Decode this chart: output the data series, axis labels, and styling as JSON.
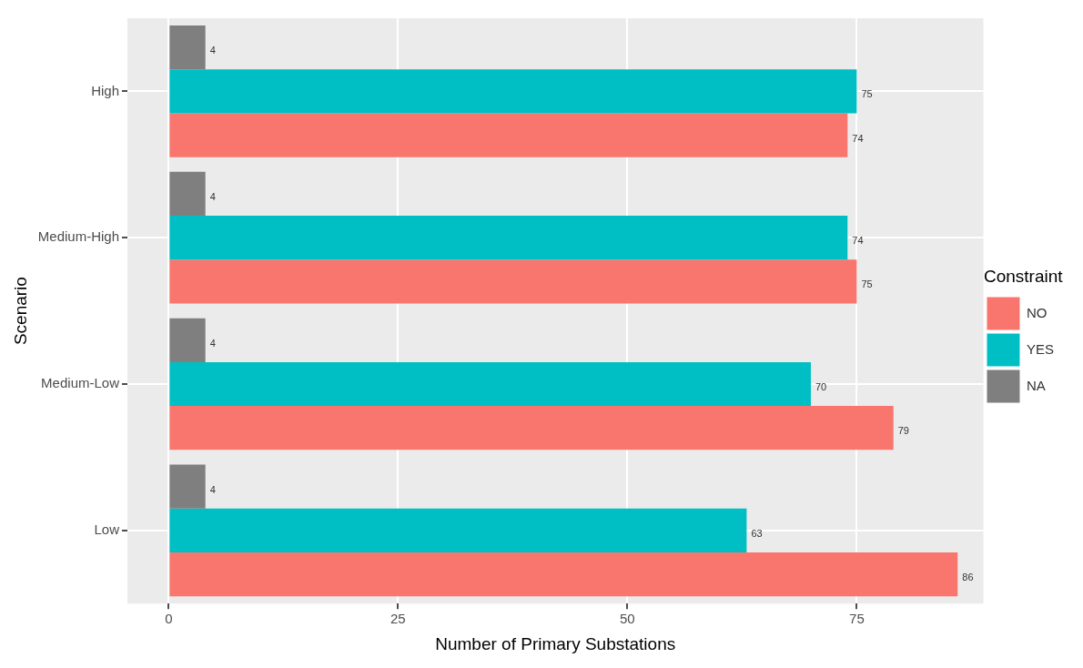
{
  "chart_data": {
    "type": "bar",
    "orientation": "horizontal",
    "xlabel": "Number of Primary Substations",
    "ylabel": "Scenario",
    "legend_title": "Constraint",
    "categories": [
      "High",
      "Medium-High",
      "Medium-Low",
      "Low"
    ],
    "series": [
      {
        "name": "NO",
        "color": "#f8766d",
        "values": [
          74,
          75,
          79,
          86
        ]
      },
      {
        "name": "YES",
        "color": "#00bfc4",
        "values": [
          75,
          74,
          70,
          63
        ]
      },
      {
        "name": "NA",
        "color": "#7f7f7f",
        "values": [
          4,
          4,
          4,
          4
        ]
      }
    ],
    "xlim": [
      -4.5,
      88.8
    ],
    "xticks": [
      0,
      25,
      50,
      75
    ],
    "grid": true,
    "legend": "right",
    "data_labels": true
  }
}
